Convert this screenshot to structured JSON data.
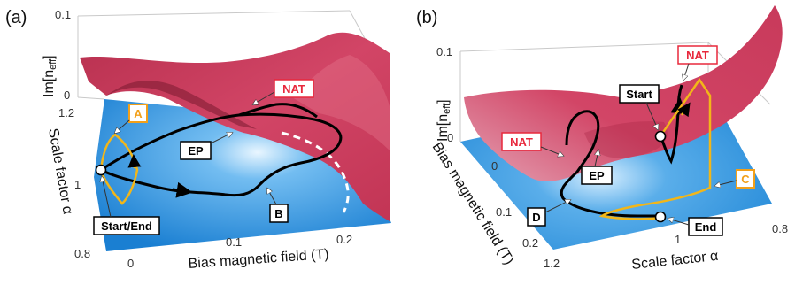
{
  "panel_a": {
    "label": "(a)",
    "z_axis": {
      "label": "Im[n",
      "sub": "eff",
      "close": "]",
      "ticks": [
        "0.1",
        "0"
      ]
    },
    "y_axis": {
      "label": "Scale factor α",
      "ticks": [
        "1.2",
        "1",
        "0.8"
      ]
    },
    "x_axis": {
      "label": "Bias magnetic field (T)",
      "ticks": [
        "0",
        "0.1",
        "0.2"
      ]
    },
    "callouts": {
      "A": "A",
      "B": "B",
      "EP": "EP",
      "NAT": "NAT",
      "start_end": "Start/End"
    }
  },
  "panel_b": {
    "label": "(b)",
    "z_axis": {
      "label": "Im[n",
      "sub": "eff",
      "close": "]",
      "ticks": [
        "0.1",
        "0"
      ]
    },
    "y_axis": {
      "label": "Bias magnetic field (T)",
      "ticks": [
        "0",
        "0.1",
        "0.2"
      ]
    },
    "x_axis": {
      "label": "Scale factor α",
      "ticks": [
        "1.2",
        "1",
        "0.8"
      ]
    },
    "callouts": {
      "C": "C",
      "D": "D",
      "EP": "EP",
      "NAT": "NAT",
      "start": "Start",
      "end": "End"
    }
  },
  "colors": {
    "blue_surface": "#1f86d6",
    "red_surface": "#c8385a",
    "trajectory": "#000000",
    "yellow_loop": "#f2b619",
    "nat_text": "#e8283c",
    "orange_label": "#f2a01a"
  }
}
